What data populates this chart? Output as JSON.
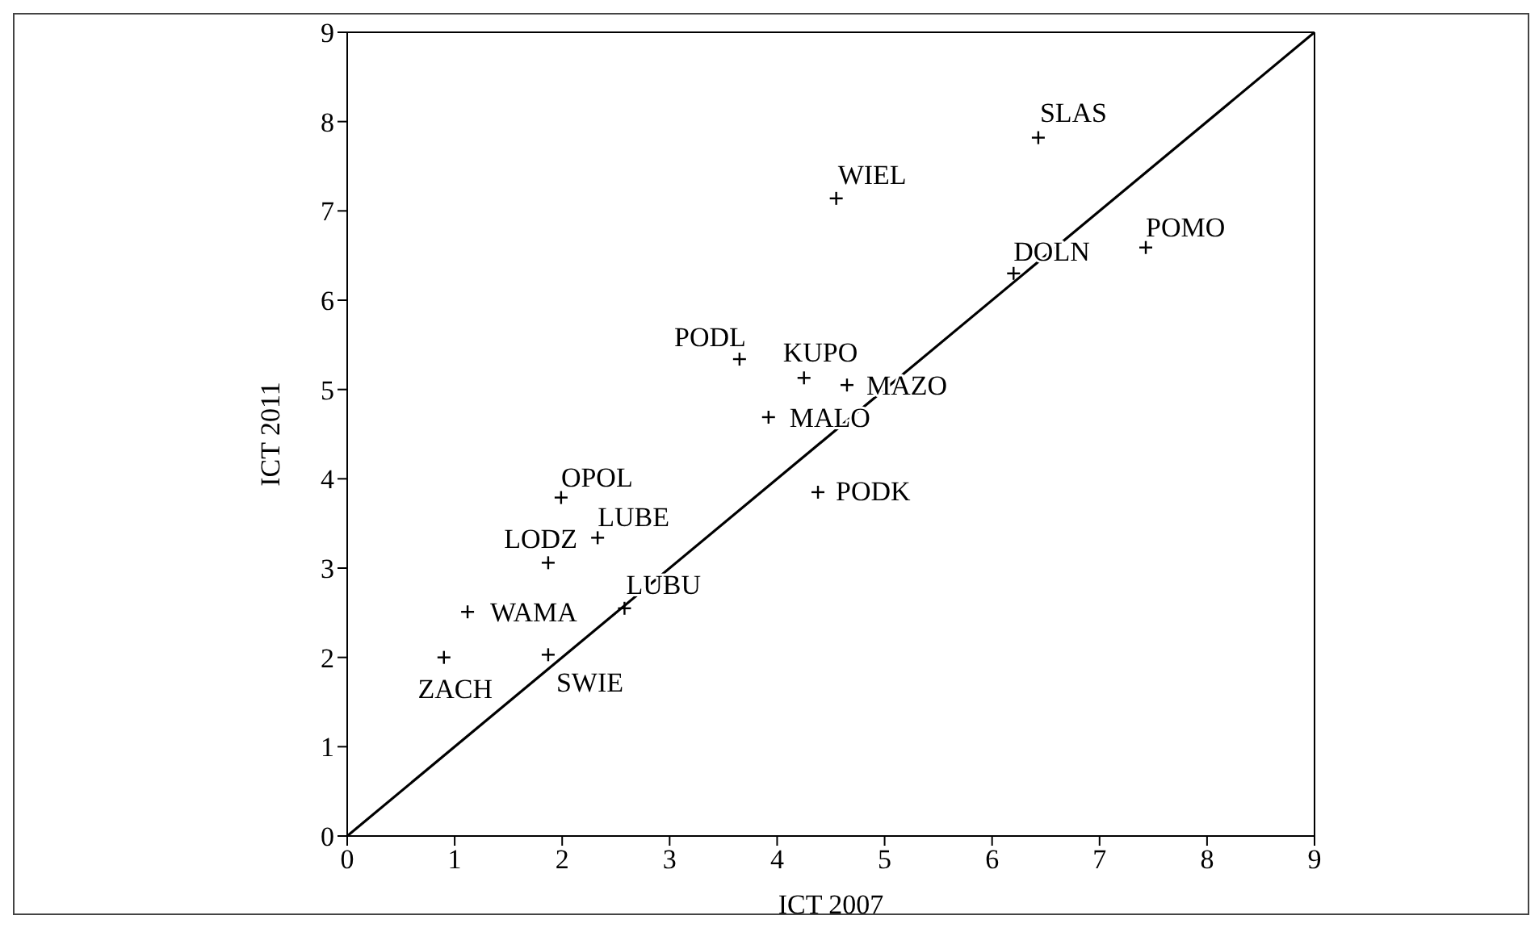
{
  "chart_data": {
    "type": "scatter",
    "xlabel": "ICT 2007",
    "ylabel": "ICT 2011",
    "xlim": [
      0,
      9
    ],
    "ylim": [
      0,
      9
    ],
    "xticks": [
      0,
      1,
      2,
      3,
      4,
      5,
      6,
      7,
      8,
      9
    ],
    "yticks": [
      0,
      1,
      2,
      3,
      4,
      5,
      6,
      7,
      8,
      9
    ],
    "grid": false,
    "legend": false,
    "marker": "cross",
    "series": [
      {
        "color": "#000000",
        "x": [
          6.43,
          4.55,
          6.2,
          7.43,
          3.65,
          4.25,
          4.65,
          3.92,
          4.38,
          1.99,
          2.33,
          1.87,
          1.12,
          2.58,
          0.9,
          1.87
        ],
        "values": [
          7.82,
          7.14,
          6.3,
          6.59,
          5.34,
          5.13,
          5.05,
          4.69,
          3.85,
          3.79,
          3.34,
          3.06,
          2.51,
          2.55,
          2.0,
          2.03
        ]
      },
      {
        "type": "line",
        "color": "#000000",
        "x": [
          0,
          9
        ],
        "values": [
          0,
          9
        ],
        "marker": "none",
        "line_style": "solid"
      }
    ],
    "annotations": [
      {
        "text": "SLAS",
        "x": 6.43,
        "y": 7.82
      },
      {
        "text": "WIEL",
        "x": 4.55,
        "y": 7.14
      },
      {
        "text": "DOLN",
        "x": 6.2,
        "y": 6.3
      },
      {
        "text": "POMO",
        "x": 7.43,
        "y": 6.59
      },
      {
        "text": "PODL",
        "x": 3.65,
        "y": 5.34
      },
      {
        "text": "KUPO",
        "x": 4.25,
        "y": 5.13
      },
      {
        "text": "MAZO",
        "x": 4.65,
        "y": 5.05
      },
      {
        "text": "MALO",
        "x": 3.92,
        "y": 4.69
      },
      {
        "text": "PODK",
        "x": 4.38,
        "y": 3.85
      },
      {
        "text": "OPOL",
        "x": 1.99,
        "y": 3.79
      },
      {
        "text": "LUBE",
        "x": 2.33,
        "y": 3.34
      },
      {
        "text": "LODZ",
        "x": 1.87,
        "y": 3.06
      },
      {
        "text": "WAMA",
        "x": 1.12,
        "y": 2.51
      },
      {
        "text": "LUBU",
        "x": 2.58,
        "y": 2.55
      },
      {
        "text": "ZACH",
        "x": 0.9,
        "y": 2.0
      },
      {
        "text": "SWIE",
        "x": 1.87,
        "y": 2.03
      }
    ]
  }
}
